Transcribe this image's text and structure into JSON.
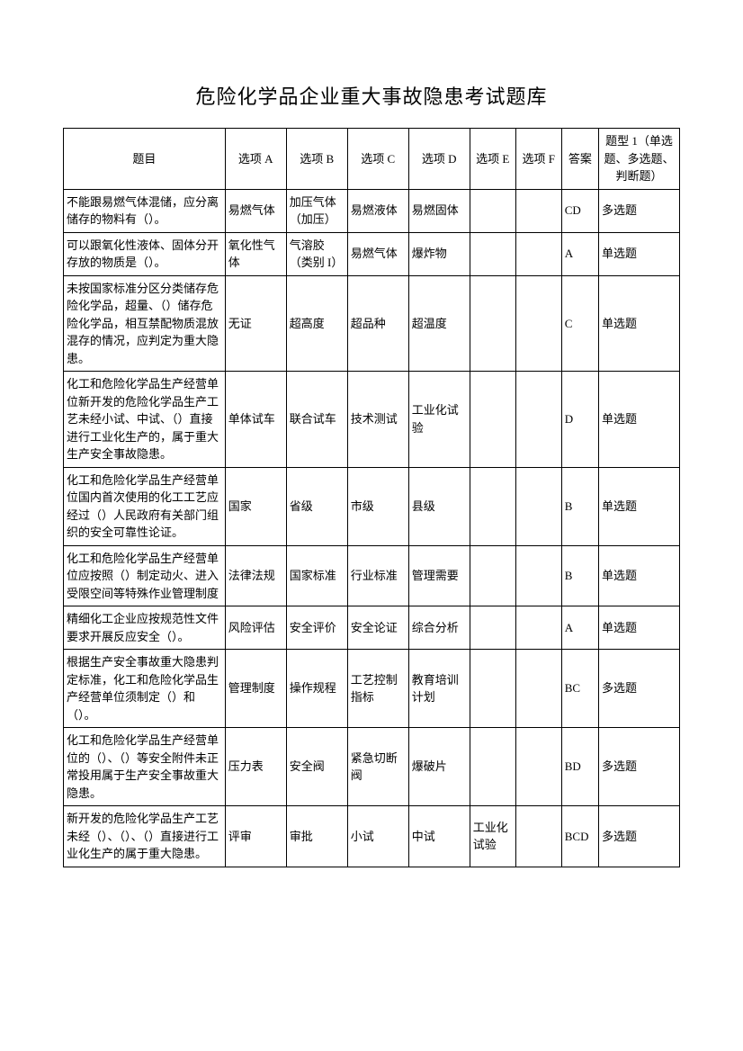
{
  "title": "危险化学品企业重大事故隐患考试题库",
  "headers": {
    "question": "题目",
    "optA": "选项 A",
    "optB": "选项 B",
    "optC": "选项 C",
    "optD": "选项 D",
    "optE": "选项 E",
    "optF": "选项 F",
    "answer": "答案",
    "type": "题型 1（单选题、多选题、判断题）"
  },
  "rows": [
    {
      "q": "不能跟易燃气体混储，应分离储存的物料有（）。",
      "a": "易燃气体",
      "b": "加压气体（加压）",
      "c": "易燃液体",
      "d": "易燃固体",
      "e": "",
      "f": "",
      "ans": "CD",
      "type": "多选题"
    },
    {
      "q": "可以跟氧化性液体、固体分开存放的物质是（）。",
      "a": "氧化性气体",
      "b": "气溶胶（类别 I）",
      "c": "易燃气体",
      "d": "爆炸物",
      "e": "",
      "f": "",
      "ans": "A",
      "type": "单选题"
    },
    {
      "q": "未按国家标准分区分类储存危险化学品，超量、（）储存危险化学品，相互禁配物质混放混存的情况，应判定为重大隐患。",
      "a": "无证",
      "b": "超高度",
      "c": "超品种",
      "d": "超温度",
      "e": "",
      "f": "",
      "ans": "C",
      "type": "单选题"
    },
    {
      "q": "化工和危险化学品生产经营单位新开发的危险化学品生产工艺未经小试、中试、（）直接进行工业化生产的，属于重大生产安全事故隐患。",
      "a": "单体试车",
      "b": "联合试车",
      "c": "技术测试",
      "d": "工业化试验",
      "e": "",
      "f": "",
      "ans": "D",
      "type": "单选题"
    },
    {
      "q": "化工和危险化学品生产经营单位国内首次使用的化工工艺应经过（）人民政府有关部门组织的安全可靠性论证。",
      "a": "国家",
      "b": "省级",
      "c": "市级",
      "d": "县级",
      "e": "",
      "f": "",
      "ans": "B",
      "type": "单选题"
    },
    {
      "q": "化工和危险化学品生产经营单位应按照（）制定动火、进入受限空间等特殊作业管理制度",
      "a": "法律法规",
      "b": "国家标准",
      "c": "行业标准",
      "d": "管理需要",
      "e": "",
      "f": "",
      "ans": "B",
      "type": "单选题"
    },
    {
      "q": "精细化工企业应按规范性文件要求开展反应安全（）。",
      "a": "风险评估",
      "b": "安全评价",
      "c": "安全论证",
      "d": "综合分析",
      "e": "",
      "f": "",
      "ans": "A",
      "type": "单选题"
    },
    {
      "q": "根据生产安全事故重大隐患判定标准，化工和危险化学品生产经营单位须制定（）和（）。",
      "a": "管理制度",
      "b": "操作规程",
      "c": "工艺控制指标",
      "d": "教育培训计划",
      "e": "",
      "f": "",
      "ans": "BC",
      "type": "多选题"
    },
    {
      "q": "化工和危险化学品生产经营单位的（）、（）等安全附件未正常投用属于生产安全事故重大隐患。",
      "a": "压力表",
      "b": "安全阀",
      "c": "紧急切断阀",
      "d": "爆破片",
      "e": "",
      "f": "",
      "ans": "BD",
      "type": "多选题"
    },
    {
      "q": "新开发的危险化学品生产工艺未经（）、（）、（）直接进行工业化生产的属于重大隐患。",
      "a": "评审",
      "b": "审批",
      "c": "小试",
      "d": "中试",
      "e": "工业化试验",
      "f": "",
      "ans": "BCD",
      "type": "多选题"
    }
  ]
}
